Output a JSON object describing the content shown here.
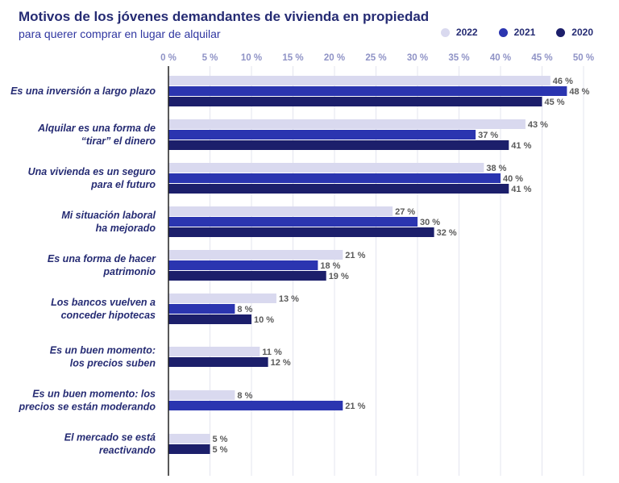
{
  "title": "Motivos de los jóvenes demandantes de vivienda en propiedad",
  "subtitle": "para querer comprar en lugar de alquilar",
  "colors": {
    "2022": "#d9d9ef",
    "2021": "#2b35b0",
    "2020": "#1c1f6b",
    "text": "#252b73",
    "grid": "#e3e4ef"
  },
  "legend": [
    {
      "label": "2022",
      "color": "#d9d9ef"
    },
    {
      "label": "2021",
      "color": "#2b35b0"
    },
    {
      "label": "2020",
      "color": "#1c1f6b"
    }
  ],
  "chart_data": {
    "type": "bar",
    "orientation": "horizontal",
    "title": "Motivos de los jóvenes demandantes de vivienda en propiedad",
    "subtitle": "para querer comprar en lugar de alquilar",
    "xlim": [
      0,
      50
    ],
    "ticks": [
      0,
      5,
      10,
      15,
      20,
      25,
      30,
      35,
      40,
      45,
      50
    ],
    "tick_labels": [
      "0 %",
      "5 %",
      "10 %",
      "15 %",
      "20 %",
      "25 %",
      "30 %",
      "35 %",
      "40 %",
      "45 %",
      "50 %"
    ],
    "grid": true,
    "legend_position": "top-right",
    "categories": [
      [
        "Es una inversión a largo plazo"
      ],
      [
        "Alquilar es una forma de",
        "“tirar” el dinero"
      ],
      [
        "Una vivienda es un seguro",
        "para el futuro"
      ],
      [
        "Mi situación laboral",
        "ha mejorado"
      ],
      [
        "Es una forma de hacer",
        "patrimonio"
      ],
      [
        "Los bancos vuelven a",
        "conceder hipotecas"
      ],
      [
        "Es un buen momento:",
        "los precios suben"
      ],
      [
        "Es un buen momento: los",
        "precios se están moderando"
      ],
      [
        "El mercado se está",
        "reactivando"
      ]
    ],
    "series": [
      {
        "name": "2022",
        "values": [
          46,
          43,
          38,
          27,
          21,
          13,
          11,
          8,
          5
        ]
      },
      {
        "name": "2021",
        "values": [
          48,
          37,
          40,
          30,
          18,
          8,
          null,
          21,
          null
        ]
      },
      {
        "name": "2020",
        "values": [
          45,
          41,
          41,
          32,
          19,
          10,
          12,
          null,
          5
        ]
      }
    ],
    "value_suffix": " %"
  }
}
